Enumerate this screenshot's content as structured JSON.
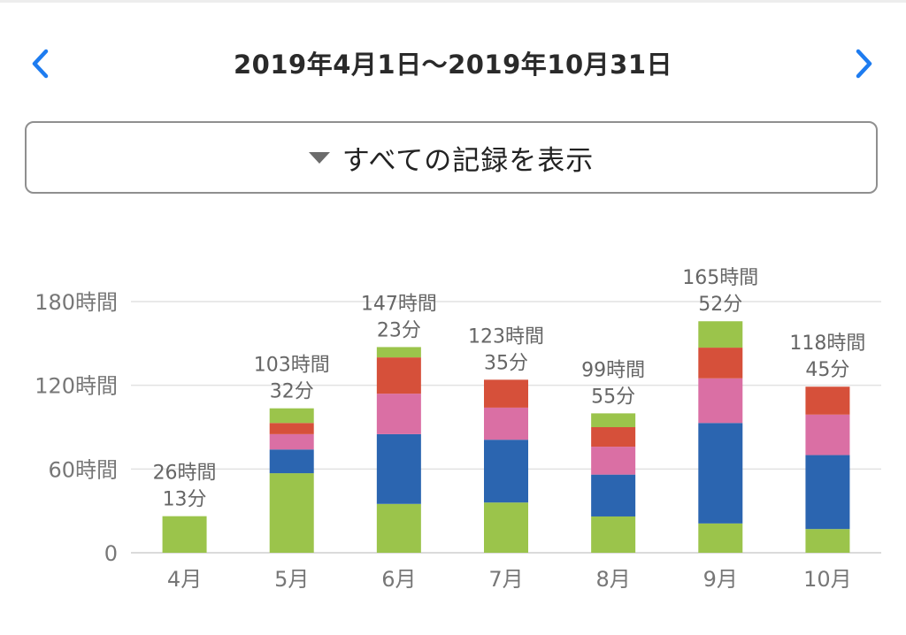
{
  "header": {
    "date_range": "2019年4月1日〜2019年10月31日",
    "prev_icon": "chevron-left-icon",
    "next_icon": "chevron-right-icon",
    "accent_color": "#1e7cf0"
  },
  "filter": {
    "label": "すべての記録を表示",
    "icon": "caret-down-icon"
  },
  "chart_data": {
    "type": "bar",
    "stacked": true,
    "categories": [
      "4月",
      "5月",
      "6月",
      "7月",
      "8月",
      "9月",
      "10月"
    ],
    "series": [
      {
        "color": "#9bc44b",
        "values": [
          26.2,
          57,
          35,
          36,
          26,
          21,
          17
        ]
      },
      {
        "color": "#2b65b0",
        "values": [
          0,
          17,
          50,
          45,
          30,
          72,
          53
        ]
      },
      {
        "color": "#da6fa4",
        "values": [
          0,
          11,
          29,
          23,
          20,
          32,
          29
        ]
      },
      {
        "color": "#d6503a",
        "values": [
          0,
          8,
          26,
          20,
          14,
          22,
          20
        ]
      },
      {
        "color": "#9bc44b",
        "values": [
          0,
          10.5,
          7.4,
          0,
          9.9,
          18.9,
          0
        ]
      }
    ],
    "totals": [
      {
        "hours": "26時間",
        "minutes": "13分"
      },
      {
        "hours": "103時間",
        "minutes": "32分"
      },
      {
        "hours": "147時間",
        "minutes": "23分"
      },
      {
        "hours": "123時間",
        "minutes": "35分"
      },
      {
        "hours": "99時間",
        "minutes": "55分"
      },
      {
        "hours": "165時間",
        "minutes": "52分"
      },
      {
        "hours": "118時間",
        "minutes": "45分"
      }
    ],
    "y_ticks": [
      {
        "value": 0,
        "label": "0"
      },
      {
        "value": 60,
        "label": "60時間"
      },
      {
        "value": 120,
        "label": "120時間"
      },
      {
        "value": 180,
        "label": "180時間"
      }
    ],
    "ylim": [
      0,
      180
    ],
    "grid": true
  }
}
